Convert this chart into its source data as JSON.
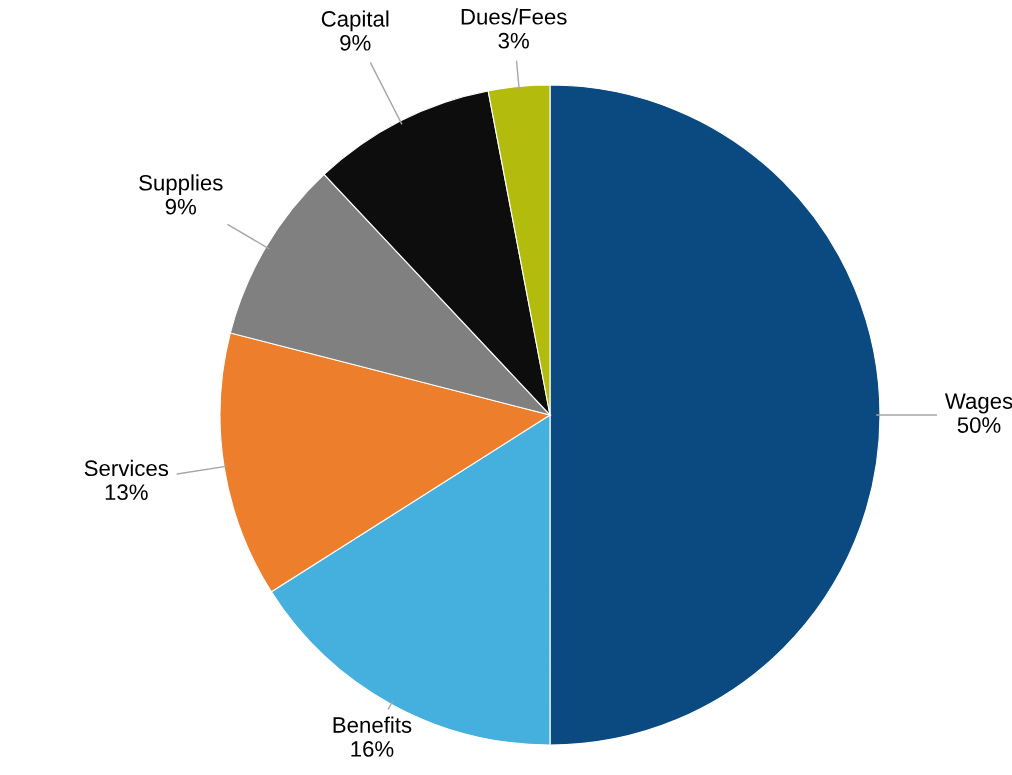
{
  "chart_data": {
    "type": "pie",
    "categories": [
      "Wages",
      "Benefits",
      "Services",
      "Supplies",
      "Capital",
      "Dues/Fees"
    ],
    "values": [
      50,
      16,
      13,
      9,
      9,
      3
    ],
    "colors": [
      "#0a4a80",
      "#45b0dd",
      "#ec7e2c",
      "#808080",
      "#0d0d0d",
      "#b3bb0d"
    ],
    "value_labels": [
      "50%",
      "16%",
      "13%",
      "9%",
      "9%",
      "3%"
    ],
    "legend": false
  }
}
